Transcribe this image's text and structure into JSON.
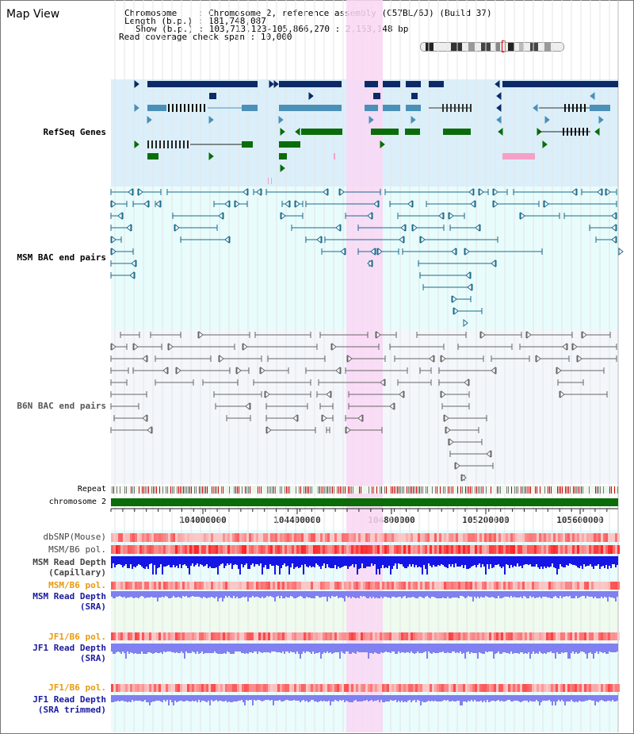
{
  "title": "Map View",
  "info": {
    "chromosome_key": "Chromosome",
    "chromosome_val": ": Chromosome 2, reference assembly (C57BL/6J) (Build 37)",
    "length_key": "Length (b.p.)",
    "length_val": ": 181,748,087",
    "show_key": "Show (b.p.)",
    "show_val": ": 103,713,123-105,866,270 : 2,153,148 bp",
    "coverage_key": "Read coverage check span",
    "coverage_val": ": 10,000"
  },
  "tracks": {
    "refseq": "RefSeq Genes",
    "msm_bac": "MSM BAC end pairs",
    "b6n_bac": "B6N BAC end pairs",
    "repeat": "Repeat",
    "chromosome": "chromosome 2",
    "dbsnp": "dbSNP(Mouse)",
    "msm_b6_pol": "MSM/B6 pol.",
    "msm_depth_cap_1": "MSM Read Depth",
    "msm_depth_cap_2": "(Capillary)",
    "msm_b6_pol_2": "MSM/B6 pol.",
    "msm_depth_sra_1": "MSM Read Depth",
    "msm_depth_sra_2": "(SRA)",
    "jf1_b6_pol": "JF1/B6 pol.",
    "jf1_depth_sra_1": "JF1 Read Depth",
    "jf1_depth_sra_2": "(SRA)",
    "jf1_b6_pol_2": "JF1/B6 pol.",
    "jf1_depth_trim_1": "JF1 Read Depth",
    "jf1_depth_trim_2": "(SRA trimmed)"
  },
  "axis_ticks": [
    "104000000",
    "104400000",
    "104800000",
    "105200000",
    "105600000"
  ],
  "colors": {
    "refseq_bg": "#dbeffa",
    "msm_bg": "#e8fcfc",
    "b6n_bg": "#f3f7fb",
    "highlight": "#f9d7f3",
    "navy": "#0b2a66",
    "steel": "#4a90b8",
    "green": "#0a6d0a",
    "teal": "#1a6a8a",
    "grey": "#666666",
    "label_blue": "#1a1aa0",
    "label_teal": "#1a6080",
    "label_orange": "#e89a10",
    "depth_blue": "#1515e6",
    "depth_violet": "#8080f0",
    "pol_red": "#f04040"
  }
}
